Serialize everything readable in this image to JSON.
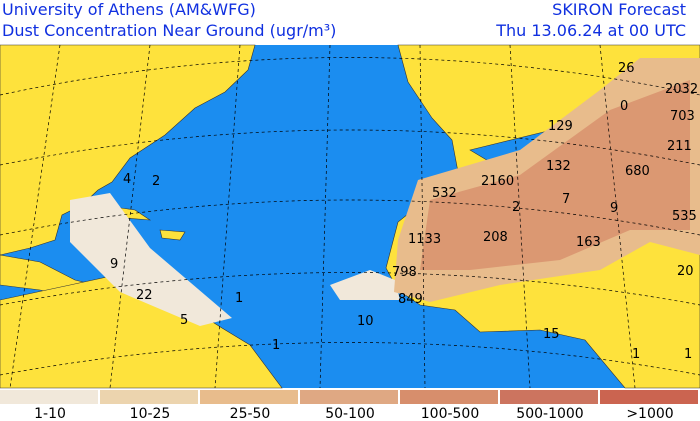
{
  "header": {
    "title": "University of Athens (AM&WFG)",
    "subtitle": "Dust Concentration Near Ground (ugr/m³)",
    "product": "SKIRON Forecast",
    "time": "Thu 13.06.24 at 00 UTC"
  },
  "map": {
    "labels": [
      26,
      2032,
      703,
      0,
      129,
      211,
      132,
      680,
      532,
      2160,
      2,
      7,
      9,
      535,
      1133,
      208,
      163,
      4,
      2,
      9,
      22,
      1,
      5,
      798,
      849,
      10,
      1,
      15,
      20,
      1,
      1
    ]
  },
  "legend": [
    {
      "label": "1-10",
      "color": "#f1e8da"
    },
    {
      "label": "10-25",
      "color": "#ecd4ae"
    },
    {
      "label": "25-50",
      "color": "#e8bc8c"
    },
    {
      "label": "50-100",
      "color": "#dfa883"
    },
    {
      "label": "100-500",
      "color": "#d78e6c"
    },
    {
      "label": "500-1000",
      "color": "#cc745f"
    },
    {
      "label": ">1000",
      "color": "#cb6450"
    }
  ]
}
